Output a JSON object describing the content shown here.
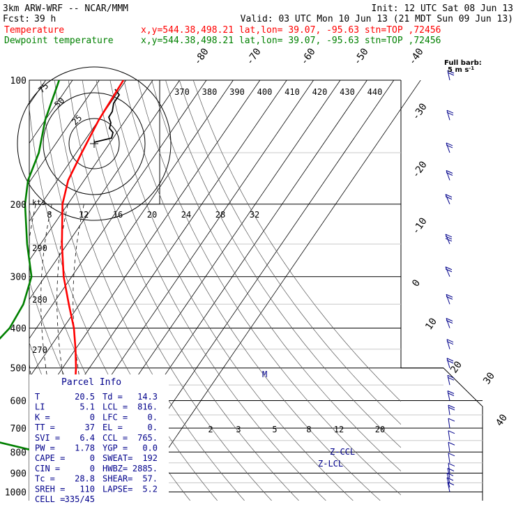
{
  "chart_data": {
    "type": "line",
    "header": {
      "model": "3km ARW-WRF -- NCAR/MMM",
      "init": "Init: 12 UTC Sat 08 Jun 13",
      "fcst_label": "Fcst:",
      "fcst_value": "39 h",
      "valid": "Valid: 03 UTC Mon 10 Jun 13 (21 MDT Sun 09 Jun 13)"
    },
    "legend": [
      {
        "name": "Temperature",
        "info": "x,y=544.38,498.21   lat,lon= 39.07, -95.63   stn=TOP ,72456",
        "color": "#ff0000"
      },
      {
        "name": "Dewpoint temperature",
        "info": "x,y=544.38,498.21   lat,lon= 39.07, -95.63   stn=TOP ,72456",
        "color": "#008000"
      }
    ],
    "pressure_levels": [
      100,
      200,
      300,
      400,
      500,
      600,
      700,
      800,
      900,
      1000
    ],
    "isotherm_labels": [
      "-80",
      "-70",
      "-60",
      "-50",
      "-40",
      "-30",
      "-20",
      "-10",
      "0",
      "10",
      "20",
      "30",
      "40"
    ],
    "theta_labels": [
      "370",
      "380",
      "390",
      "400",
      "410",
      "420",
      "430",
      "440"
    ],
    "theta_left_labels": [
      "290",
      "280",
      "270"
    ],
    "mixing_labels": [
      "2",
      "3",
      "5",
      "8",
      "12",
      "20"
    ],
    "hodograph": {
      "kts_label": "kts",
      "ring_labels": [
        "75",
        "50",
        "25"
      ],
      "speed_labels": [
        "8",
        "12",
        "16",
        "20",
        "24",
        "28",
        "32"
      ],
      "path": [
        [
          0,
          -2
        ],
        [
          25,
          -8
        ],
        [
          27,
          -16
        ],
        [
          22,
          -22
        ],
        [
          24,
          -30
        ],
        [
          21,
          -38
        ],
        [
          26,
          -46
        ],
        [
          28,
          -58
        ],
        [
          36,
          -70
        ],
        [
          30,
          -78
        ]
      ]
    },
    "temperature": [
      {
        "p": 1000,
        "t": 26
      },
      {
        "p": 975,
        "t": 28.5
      },
      {
        "p": 950,
        "t": 25
      },
      {
        "p": 925,
        "t": 21
      },
      {
        "p": 900,
        "t": 18
      },
      {
        "p": 850,
        "t": 15.5
      },
      {
        "p": 800,
        "t": 13.5
      },
      {
        "p": 750,
        "t": 11.5
      },
      {
        "p": 700,
        "t": 9
      },
      {
        "p": 650,
        "t": 6.5
      },
      {
        "p": 600,
        "t": 3
      },
      {
        "p": 550,
        "t": -1
      },
      {
        "p": 500,
        "t": -5
      },
      {
        "p": 450,
        "t": -10
      },
      {
        "p": 400,
        "t": -16
      },
      {
        "p": 350,
        "t": -24
      },
      {
        "p": 300,
        "t": -33
      },
      {
        "p": 250,
        "t": -42
      },
      {
        "p": 200,
        "t": -52
      },
      {
        "p": 175,
        "t": -56
      },
      {
        "p": 150,
        "t": -58
      },
      {
        "p": 125,
        "t": -60
      },
      {
        "p": 100,
        "t": -61
      }
    ],
    "dewpoint": [
      {
        "p": 1000,
        "t": 11
      },
      {
        "p": 975,
        "t": 14
      },
      {
        "p": 950,
        "t": 15
      },
      {
        "p": 925,
        "t": 16
      },
      {
        "p": 900,
        "t": 14.5
      },
      {
        "p": 850,
        "t": 11
      },
      {
        "p": 800,
        "t": 3
      },
      {
        "p": 750,
        "t": -18
      },
      {
        "p": 700,
        "t": -35
      },
      {
        "p": 650,
        "t": -48
      },
      {
        "p": 600,
        "t": -56
      },
      {
        "p": 575,
        "t": -58
      },
      {
        "p": 550,
        "t": -55
      },
      {
        "p": 500,
        "t": -47
      },
      {
        "p": 450,
        "t": -42
      },
      {
        "p": 400,
        "t": -40
      },
      {
        "p": 350,
        "t": -41
      },
      {
        "p": 300,
        "t": -45
      },
      {
        "p": 250,
        "t": -55
      },
      {
        "p": 200,
        "t": -66
      },
      {
        "p": 175,
        "t": -71
      },
      {
        "p": 150,
        "t": -74
      },
      {
        "p": 125,
        "t": -80
      },
      {
        "p": 100,
        "t": -85
      }
    ],
    "lcl_labels": [
      "Z-CCL",
      "Z-LCL"
    ],
    "m_label": "M",
    "barbs_title": "Full barb:",
    "barbs_unit": "5 m s",
    "barbs_unit_sup": "-1",
    "barb_levels": [
      {
        "p": 1000,
        "u": 3,
        "v": 2
      },
      {
        "p": 975,
        "u": 4,
        "v": 3
      },
      {
        "p": 950,
        "u": 4,
        "v": 3
      },
      {
        "p": 925,
        "u": 3,
        "v": 3
      },
      {
        "p": 900,
        "u": 2,
        "v": 4
      },
      {
        "p": 850,
        "u": 2,
        "v": 6
      },
      {
        "p": 800,
        "u": 2,
        "v": 7
      },
      {
        "p": 750,
        "u": 2,
        "v": 8
      },
      {
        "p": 700,
        "u": 2,
        "v": 9
      },
      {
        "p": 650,
        "u": 2,
        "v": 10
      },
      {
        "p": 600,
        "u": 3,
        "v": 11
      },
      {
        "p": 550,
        "u": 3,
        "v": 11
      },
      {
        "p": 500,
        "u": 4,
        "v": 12
      },
      {
        "p": 450,
        "u": 4,
        "v": 13
      },
      {
        "p": 400,
        "u": 5,
        "v": 13
      },
      {
        "p": 350,
        "u": 5,
        "v": 14
      },
      {
        "p": 300,
        "u": 6,
        "v": 14
      },
      {
        "p": 250,
        "u": 6,
        "v": 15
      },
      {
        "p": 200,
        "u": 6,
        "v": 14
      },
      {
        "p": 175,
        "u": 5,
        "v": 13
      },
      {
        "p": 150,
        "u": 5,
        "v": 12
      },
      {
        "p": 125,
        "u": 4,
        "v": 11
      },
      {
        "p": 100,
        "u": 3,
        "v": 10
      }
    ],
    "parcel_info": {
      "title": "Parcel Info",
      "rows": [
        [
          "T",
          "20.5",
          "Td =",
          "14.3"
        ],
        [
          "LI",
          "5.1",
          "LCL =",
          "816."
        ],
        [
          "K  =",
          "0",
          "LFC =",
          "0."
        ],
        [
          "TT =",
          "37",
          "EL  =",
          "0."
        ],
        [
          "SVI =",
          "6.4",
          "CCL =",
          "765."
        ],
        [
          "PW =",
          "1.78",
          "YGP =",
          "0.0"
        ],
        [
          "CAPE =",
          "0",
          "SWEAT=",
          "192"
        ],
        [
          "CIN =",
          "0",
          "HWBZ=",
          "2885."
        ],
        [
          "Tc =",
          "28.8",
          "SHEAR=",
          "57."
        ],
        [
          "SREH =",
          "110",
          "LAPSE=",
          "5.2"
        ],
        [
          "CELL =",
          "335/45",
          "",
          ""
        ]
      ]
    }
  }
}
